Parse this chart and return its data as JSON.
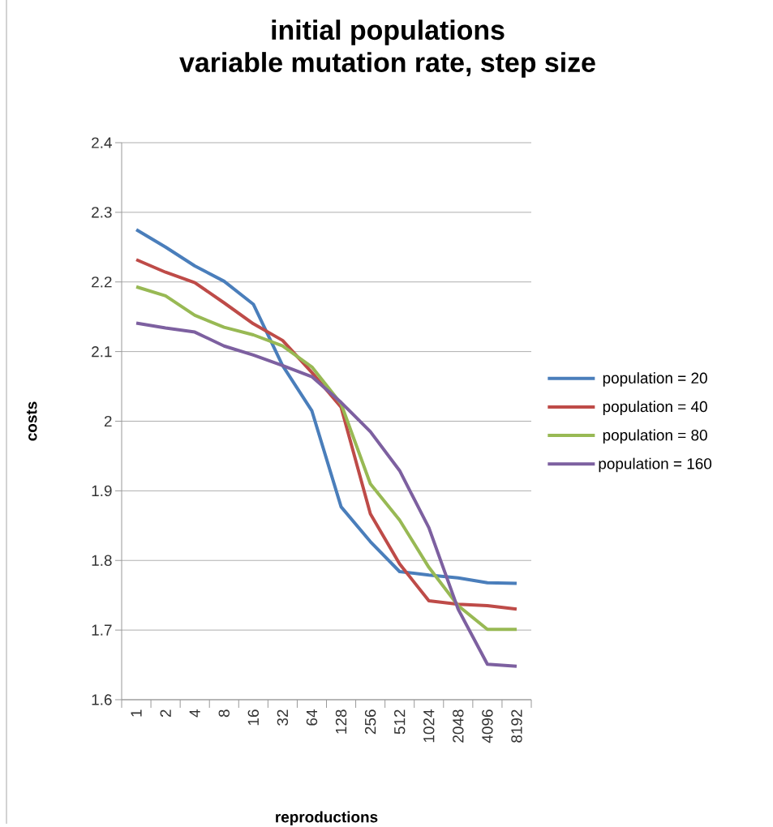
{
  "chart_data": {
    "type": "line",
    "title": "initial populations",
    "subtitle": "variable mutation rate, step size",
    "xlabel": "reproductions",
    "ylabel": "costs",
    "categories": [
      "1",
      "2",
      "4",
      "8",
      "16",
      "32",
      "64",
      "128",
      "256",
      "512",
      "1024",
      "2048",
      "4096",
      "8192"
    ],
    "ylim": [
      1.6,
      2.4
    ],
    "yticks": [
      1.6,
      1.7,
      1.8,
      1.9,
      2,
      2.1,
      2.2,
      2.3,
      2.4
    ],
    "grid": "y",
    "legend": "right",
    "marker": "none",
    "line_style": "solid",
    "series": [
      {
        "name": "population = 20",
        "color": "#4a7ebb",
        "values": [
          2.275,
          2.25,
          2.223,
          2.201,
          2.168,
          2.08,
          2.015,
          1.877,
          1.827,
          1.784,
          1.779,
          1.775,
          1.768,
          1.767
        ]
      },
      {
        "name": "population = 40",
        "color": "#be4b48",
        "values": [
          2.232,
          2.214,
          2.199,
          2.17,
          2.14,
          2.116,
          2.07,
          2.02,
          1.867,
          1.795,
          1.742,
          1.737,
          1.735,
          1.73
        ]
      },
      {
        "name": "population = 80",
        "color": "#98b954",
        "values": [
          2.193,
          2.18,
          2.152,
          2.135,
          2.124,
          2.108,
          2.078,
          2.025,
          1.91,
          1.858,
          1.79,
          1.735,
          1.701,
          1.701
        ]
      },
      {
        "name": "population = 160",
        "color": "#7d60a0",
        "values": [
          2.141,
          2.134,
          2.128,
          2.108,
          2.095,
          2.08,
          2.064,
          2.027,
          1.985,
          1.929,
          1.847,
          1.73,
          1.651,
          1.648
        ]
      }
    ]
  }
}
